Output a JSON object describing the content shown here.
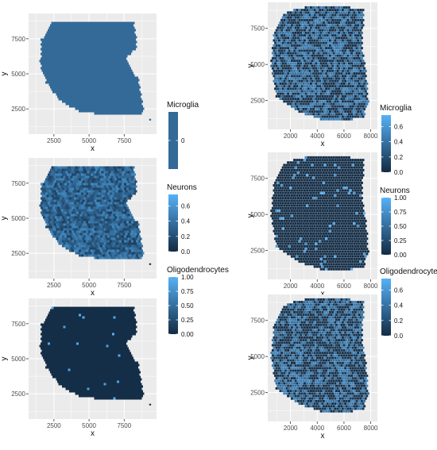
{
  "chart_data": [
    {
      "type": "scatter",
      "column": "left",
      "xlabel": "x",
      "ylabel": "y",
      "x_ticks": [
        2500,
        5000,
        7500
      ],
      "y_ticks": [
        2500,
        5000,
        7500
      ],
      "xlim": [
        700,
        9800
      ],
      "ylim": [
        9300,
        700
      ],
      "legend": {
        "title": "Microglia",
        "ticks": [
          0
        ],
        "placement": "right"
      },
      "color_range": [
        0,
        0
      ],
      "colors": {
        "low": "#336a98",
        "high": "#336a98"
      },
      "grid": true,
      "fill": "uniform"
    },
    {
      "type": "scatter",
      "column": "left",
      "xlabel": "x",
      "ylabel": "y",
      "x_ticks": [
        2500,
        5000,
        7500
      ],
      "y_ticks": [
        2500,
        5000,
        7500
      ],
      "xlim": [
        700,
        9800
      ],
      "ylim": [
        9300,
        700
      ],
      "legend": {
        "title": "Neurons",
        "ticks": [
          0.0,
          0.2,
          0.4,
          0.6
        ],
        "tick_labels": [
          "0.0",
          "0.2",
          "0.4",
          "0.6"
        ],
        "placement": "right"
      },
      "color_range": [
        0,
        0.75
      ],
      "colors": {
        "low": "#132b43",
        "high": "#56b1f7"
      },
      "grid": true,
      "fill": "mixed"
    },
    {
      "type": "scatter",
      "column": "left",
      "xlabel": "x",
      "ylabel": "y",
      "x_ticks": [
        2500,
        5000,
        7500
      ],
      "y_ticks": [
        2500,
        5000,
        7500
      ],
      "xlim": [
        700,
        9800
      ],
      "ylim": [
        9300,
        700
      ],
      "legend": {
        "title": "Oligodendrocytes",
        "ticks": [
          0.0,
          0.25,
          0.5,
          0.75,
          1.0
        ],
        "tick_labels": [
          "0.00",
          "0.25",
          "0.50",
          "0.75",
          "1.00"
        ],
        "placement": "right"
      },
      "color_range": [
        0,
        1
      ],
      "colors": {
        "low": "#132b43",
        "high": "#56b1f7"
      },
      "grid": true,
      "fill": "sparse"
    },
    {
      "type": "scatter",
      "column": "right",
      "xlabel": "x",
      "ylabel": "y",
      "x_ticks": [
        2000,
        4000,
        6000,
        8000
      ],
      "y_ticks": [
        2500,
        5000,
        7500
      ],
      "xlim": [
        300,
        8500
      ],
      "ylim": [
        9300,
        500
      ],
      "legend": {
        "title": "Microglia",
        "ticks": [
          0.0,
          0.2,
          0.4,
          0.6
        ],
        "tick_labels": [
          "0.0",
          "0.2",
          "0.4",
          "0.6"
        ],
        "placement": "right"
      },
      "color_range": [
        0,
        0.75
      ],
      "colors": {
        "low": "#132b43",
        "high": "#56b1f7"
      },
      "grid": true,
      "fill": "mixed-dark"
    },
    {
      "type": "scatter",
      "column": "right",
      "xlabel": "x",
      "ylabel": "y",
      "x_ticks": [
        2000,
        4000,
        6000,
        8000
      ],
      "y_ticks": [
        2500,
        5000,
        7500
      ],
      "xlim": [
        300,
        8500
      ],
      "ylim": [
        9300,
        500
      ],
      "legend": {
        "title": "Neurons",
        "ticks": [
          0.0,
          0.25,
          0.5,
          0.75,
          1.0
        ],
        "tick_labels": [
          "0.00",
          "0.25",
          "0.50",
          "0.75",
          "1.00"
        ],
        "placement": "right"
      },
      "color_range": [
        0,
        1
      ],
      "colors": {
        "low": "#132b43",
        "high": "#56b1f7"
      },
      "grid": true,
      "fill": "sparse-bright"
    },
    {
      "type": "scatter",
      "column": "right",
      "xlabel": "x",
      "ylabel": "y",
      "x_ticks": [
        2000,
        4000,
        6000,
        8000
      ],
      "y_ticks": [
        2500,
        5000,
        7500
      ],
      "xlim": [
        300,
        8500
      ],
      "ylim": [
        9300,
        500
      ],
      "legend": {
        "title": "Oligodendrocytes",
        "ticks": [
          0.0,
          0.2,
          0.4,
          0.6
        ],
        "tick_labels": [
          "0.0",
          "0.2",
          "0.4",
          "0.6"
        ],
        "placement": "right"
      },
      "color_range": [
        0,
        0.75
      ],
      "colors": {
        "low": "#132b43",
        "high": "#56b1f7"
      },
      "grid": true,
      "fill": "mixed-dark"
    }
  ]
}
